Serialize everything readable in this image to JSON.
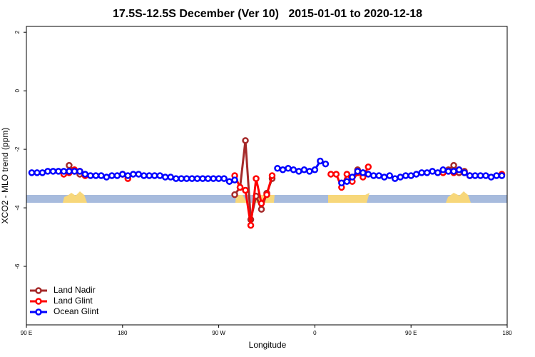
{
  "chart_data": {
    "type": "line",
    "title": "17.5S-12.5S December (Ver 10)   2015-01-01 to 2020-12-18",
    "x_label": "Longitude",
    "y_label": "XCO2 - MLO trend (ppm)",
    "xlim": [
      90,
      540
    ],
    "ylim": [
      -8,
      2.2
    ],
    "xticks": [
      {
        "value": 90,
        "label": "90 E"
      },
      {
        "value": 180,
        "label": "180"
      },
      {
        "value": 270,
        "label": "90 W"
      },
      {
        "value": 360,
        "label": "0"
      },
      {
        "value": 450,
        "label": "90 E"
      },
      {
        "value": 540,
        "label": "180"
      }
    ],
    "yticks": [
      2,
      0,
      -2,
      -4,
      -6
    ],
    "legend": "bottom-left",
    "x": [
      95,
      100,
      105,
      110,
      115,
      120,
      125,
      130,
      135,
      140,
      145,
      150,
      155,
      160,
      165,
      170,
      175,
      180,
      185,
      190,
      195,
      200,
      205,
      210,
      215,
      220,
      225,
      230,
      235,
      240,
      245,
      250,
      255,
      260,
      265,
      270,
      275,
      280,
      285,
      290,
      295,
      300,
      305,
      310,
      315,
      320,
      325,
      330,
      335,
      340,
      345,
      350,
      355,
      360,
      365,
      370,
      375,
      380,
      385,
      390,
      395,
      400,
      405,
      410,
      415,
      420,
      425,
      430,
      435,
      440,
      445,
      450,
      455,
      460,
      465,
      470,
      475,
      480,
      485,
      490,
      495,
      500,
      505,
      510,
      515,
      520,
      525,
      530,
      535
    ],
    "series": [
      {
        "name": "Land Nadir",
        "color": "#a52a2a",
        "values": [
          null,
          null,
          null,
          null,
          null,
          null,
          null,
          -2.55,
          -2.75,
          -2.85,
          null,
          null,
          null,
          null,
          null,
          null,
          null,
          -2.85,
          null,
          null,
          null,
          null,
          null,
          null,
          null,
          null,
          null,
          null,
          null,
          null,
          null,
          null,
          null,
          null,
          null,
          null,
          null,
          null,
          -3.55,
          -3.3,
          -1.7,
          -4.4,
          -3.6,
          -4.05,
          -3.5,
          -3.0,
          null,
          null,
          null,
          null,
          null,
          null,
          null,
          null,
          null,
          null,
          null,
          null,
          null,
          null,
          null,
          -2.7,
          -2.8,
          null,
          null,
          null,
          null,
          null,
          null,
          null,
          null,
          null,
          null,
          null,
          null,
          null,
          null,
          null,
          -2.7,
          -2.55,
          -2.8,
          -2.75,
          -2.9,
          null,
          null,
          null,
          null,
          null,
          null
        ]
      },
      {
        "name": "Land Glint",
        "color": "#ff0000",
        "values": [
          null,
          null,
          null,
          null,
          null,
          null,
          -2.85,
          -2.8,
          -2.7,
          -2.75,
          -2.9,
          null,
          null,
          null,
          null,
          null,
          null,
          -2.85,
          -3.0,
          null,
          null,
          null,
          null,
          null,
          null,
          null,
          null,
          null,
          null,
          null,
          null,
          null,
          null,
          null,
          null,
          null,
          null,
          null,
          -2.9,
          -3.3,
          -3.4,
          -4.6,
          -3.0,
          -3.85,
          -3.55,
          -2.9,
          null,
          null,
          null,
          null,
          null,
          null,
          null,
          null,
          null,
          null,
          -2.85,
          -2.85,
          -3.3,
          -2.85,
          -3.1,
          -2.8,
          -2.95,
          -2.6,
          null,
          null,
          null,
          null,
          null,
          null,
          null,
          null,
          null,
          null,
          null,
          null,
          null,
          -2.8,
          -2.75,
          -2.8,
          -2.7,
          -2.8,
          -2.9,
          null,
          null,
          null,
          null,
          null,
          -2.85
        ]
      },
      {
        "name": "Ocean Glint",
        "color": "#0000ff",
        "values": [
          -2.8,
          -2.8,
          -2.8,
          -2.75,
          -2.75,
          -2.75,
          -2.75,
          -2.75,
          -2.75,
          -2.75,
          -2.85,
          -2.9,
          -2.9,
          -2.9,
          -2.95,
          -2.9,
          -2.9,
          -2.85,
          -2.9,
          -2.85,
          -2.85,
          -2.9,
          -2.9,
          -2.9,
          -2.9,
          -2.95,
          -2.95,
          -3.0,
          -3.0,
          -3.0,
          -3.0,
          -3.0,
          -3.0,
          -3.0,
          -3.0,
          -3.0,
          -3.0,
          -3.1,
          -3.05,
          null,
          null,
          null,
          null,
          null,
          null,
          null,
          -2.65,
          -2.7,
          -2.65,
          -2.7,
          -2.75,
          -2.7,
          -2.75,
          -2.7,
          -2.4,
          -2.5,
          null,
          null,
          -3.15,
          -3.1,
          -2.95,
          -2.75,
          -2.8,
          -2.85,
          -2.9,
          -2.9,
          -2.95,
          -2.9,
          -3.0,
          -2.95,
          -2.9,
          -2.9,
          -2.85,
          -2.8,
          -2.8,
          -2.75,
          -2.8,
          -2.7,
          -2.75,
          -2.75,
          -2.7,
          -2.8,
          -2.9,
          -2.9,
          -2.9,
          -2.9,
          -2.95,
          -2.9,
          -2.9
        ]
      }
    ]
  }
}
